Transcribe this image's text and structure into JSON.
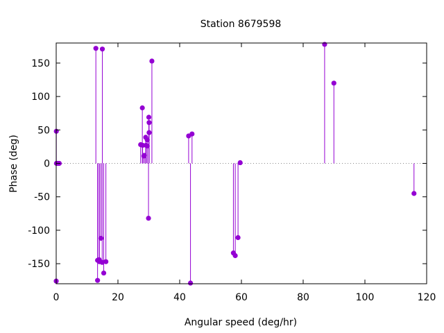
{
  "chart_data": {
    "type": "scatter",
    "title": "Station 8679598",
    "xlabel": "Angular speed (deg/hr)",
    "ylabel": "Phase (deg)",
    "xlim": [
      0,
      120
    ],
    "ylim": [
      -180,
      180
    ],
    "xticks": [
      "0",
      "20",
      "40",
      "60",
      "80",
      "100",
      "120"
    ],
    "yticks": [
      "-150",
      "-100",
      "-50",
      "0",
      "50",
      "100",
      "150"
    ],
    "zero_line": true,
    "grid": false,
    "legend": "none",
    "series": [
      {
        "style": "impulses with points",
        "color": "#9400d3",
        "points": [
          [
            0.0,
            -176
          ],
          [
            0.04,
            48
          ],
          [
            0.08,
            0
          ],
          [
            0.5,
            0
          ],
          [
            1.0,
            0
          ],
          [
            12.85,
            172
          ],
          [
            13.4,
            -175
          ],
          [
            13.4,
            -145
          ],
          [
            13.9,
            -144
          ],
          [
            14.0,
            -147
          ],
          [
            14.5,
            -112
          ],
          [
            14.9,
            -148
          ],
          [
            14.95,
            171
          ],
          [
            15.4,
            -164
          ],
          [
            16.1,
            -147
          ],
          [
            27.35,
            28
          ],
          [
            27.9,
            83
          ],
          [
            28.0,
            27
          ],
          [
            28.4,
            11
          ],
          [
            28.5,
            12
          ],
          [
            29.0,
            39
          ],
          [
            29.1,
            27
          ],
          [
            29.5,
            35
          ],
          [
            29.5,
            26
          ],
          [
            29.9,
            -82
          ],
          [
            30.0,
            69
          ],
          [
            30.1,
            46
          ],
          [
            30.1,
            61
          ],
          [
            31.0,
            153
          ],
          [
            42.9,
            41
          ],
          [
            43.5,
            -179
          ],
          [
            44.0,
            44
          ],
          [
            57.4,
            -134
          ],
          [
            58.0,
            -138
          ],
          [
            58.9,
            -111
          ],
          [
            59.6,
            1
          ],
          [
            86.95,
            178
          ],
          [
            89.95,
            120
          ],
          [
            115.9,
            -45
          ]
        ]
      }
    ]
  }
}
